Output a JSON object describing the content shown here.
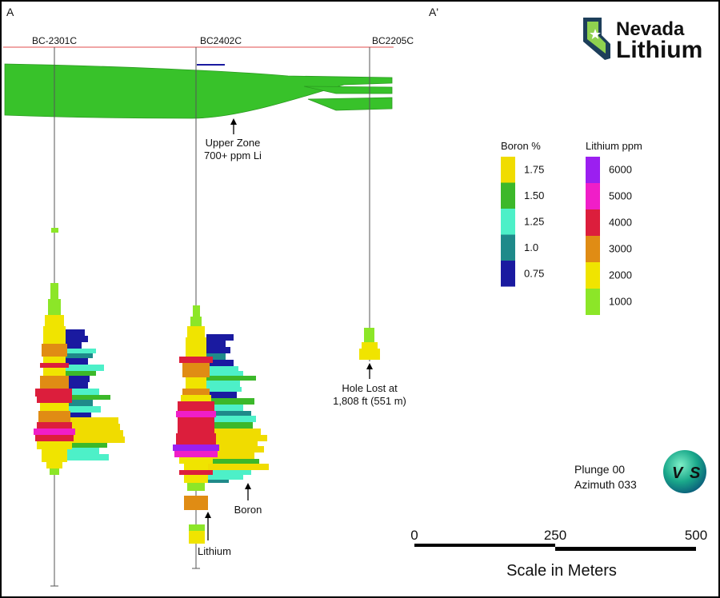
{
  "section": {
    "start_label": "A",
    "end_label": "A'"
  },
  "logo": {
    "line1": "Nevada",
    "line2": "Lithium",
    "color": "#1d3e5a",
    "accent": "#8fd14f"
  },
  "holes": [
    {
      "id": "h1",
      "label": "BC-2301C"
    },
    {
      "id": "h2",
      "label": "BC2402C"
    },
    {
      "id": "h3",
      "label": "BC2205C"
    }
  ],
  "annotations": {
    "upper_zone_line1": "Upper Zone",
    "upper_zone_line2": "700+ ppm Li",
    "hole_lost_line1": "Hole Lost at",
    "hole_lost_line2": "1,808 ft (551 m)",
    "boron": "Boron",
    "lithium": "Lithium"
  },
  "legend_boron": {
    "title": "Boron %",
    "items": [
      {
        "label": "1.75",
        "color": "#f0dc00"
      },
      {
        "label": "1.50",
        "color": "#3cb82a"
      },
      {
        "label": "1.25",
        "color": "#4df0c8"
      },
      {
        "label": "1.0",
        "color": "#1f8a8a"
      },
      {
        "label": "0.75",
        "color": "#1a1aa0"
      }
    ]
  },
  "legend_lithium": {
    "title": "Lithium ppm",
    "items": [
      {
        "label": "6000",
        "color": "#9b1ff0"
      },
      {
        "label": "5000",
        "color": "#f01ec8"
      },
      {
        "label": "4000",
        "color": "#dc1e3c"
      },
      {
        "label": "3000",
        "color": "#e08c14"
      },
      {
        "label": "2000",
        "color": "#f0e400"
      },
      {
        "label": "1000",
        "color": "#8ce628"
      }
    ]
  },
  "orientation": {
    "plunge": "Plunge 00",
    "azimuth": "Azimuth 033",
    "left_letter": "V",
    "right_letter": "S"
  },
  "scale": {
    "ticks": [
      "0",
      "250",
      "500"
    ],
    "title": "Scale in Meters"
  }
}
